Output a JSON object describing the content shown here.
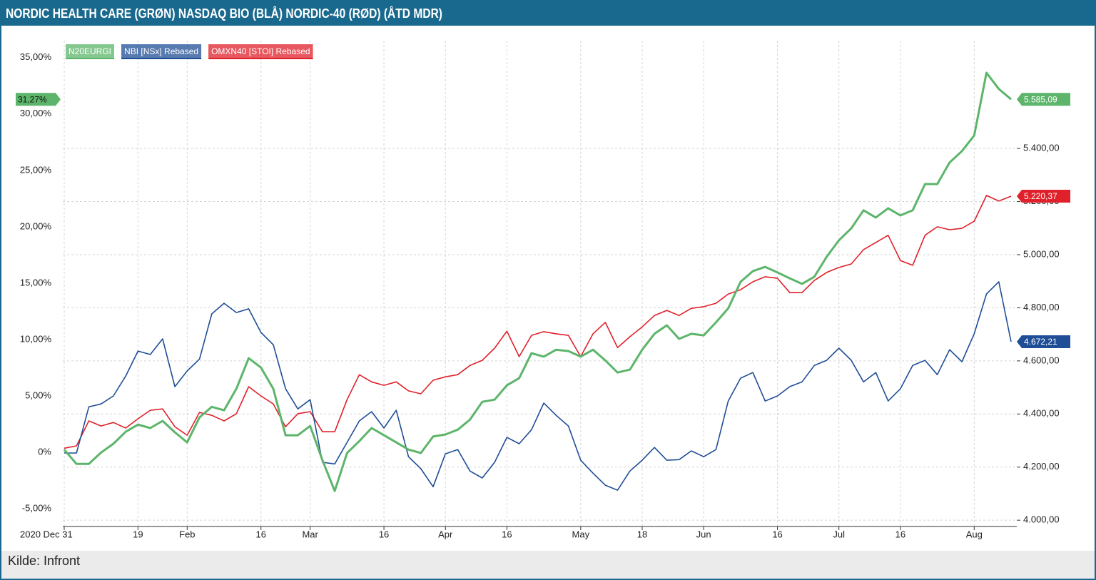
{
  "chart_data": {
    "type": "line",
    "title": "NORDIC HEALTH CARE (GRØN) NASDAQ BIO (BLÅ) NORDIC-40 (RØD) (ÅTD MDR)",
    "source": "Kilde: Infront",
    "categories": [
      "2020 Dec 31",
      null,
      null,
      null,
      null,
      null,
      "19",
      null,
      null,
      null,
      "Feb",
      null,
      null,
      null,
      null,
      null,
      "16",
      null,
      null,
      null,
      "Mar",
      null,
      null,
      null,
      null,
      null,
      "16",
      null,
      null,
      null,
      null,
      "Apr",
      null,
      null,
      null,
      null,
      "16",
      null,
      null,
      null,
      null,
      null,
      "May",
      null,
      null,
      null,
      null,
      "18",
      null,
      null,
      null,
      null,
      "Jun",
      null,
      null,
      null,
      null,
      null,
      "16",
      null,
      null,
      null,
      null,
      "Jul",
      null,
      null,
      null,
      null,
      "16",
      null,
      null,
      null,
      null,
      null,
      "Aug",
      null,
      null,
      null
    ],
    "ylim": [
      -6.5,
      36.5
    ],
    "yticks": [
      {
        "value": -5,
        "label": "-5,00%"
      },
      {
        "value": 0,
        "label": "0%"
      },
      {
        "value": 5,
        "label": "5,00%"
      },
      {
        "value": 10,
        "label": "10,00%"
      },
      {
        "value": 15,
        "label": "15,00%"
      },
      {
        "value": 20,
        "label": "20,00%"
      },
      {
        "value": 25,
        "label": "25,00%"
      },
      {
        "value": 30,
        "label": "30,00%"
      },
      {
        "value": 35,
        "label": "35,00%"
      }
    ],
    "y2lim": [
      3979,
      5806
    ],
    "y2ticks": [
      {
        "value": 4000,
        "label": "4.000,00"
      },
      {
        "value": 4200,
        "label": "4.200,00"
      },
      {
        "value": 4400,
        "label": "4.400,00"
      },
      {
        "value": 4600,
        "label": "4.600,00"
      },
      {
        "value": 4800,
        "label": "4.800,00"
      },
      {
        "value": 5000,
        "label": "5.000,00"
      },
      {
        "value": 5200,
        "label": "5.200,00"
      },
      {
        "value": 5400,
        "label": "5.400,00"
      }
    ],
    "grid": true,
    "legend": "top-left",
    "series": [
      {
        "name": "N20EURGI",
        "color": "#5cb56a",
        "axis": "y2",
        "end_label": "5.585,09",
        "end_label_left": "31,27%",
        "values": [
          4266,
          4212,
          4212,
          4255,
          4288,
          4333,
          4360,
          4347,
          4374,
          4331,
          4293,
          4387,
          4427,
          4414,
          4495,
          4610,
          4575,
          4495,
          4320,
          4320,
          4355,
          4226,
          4110,
          4253,
          4298,
          4347,
          4320,
          4293,
          4266,
          4253,
          4315,
          4323,
          4341,
          4379,
          4446,
          4454,
          4508,
          4535,
          4629,
          4616,
          4642,
          4637,
          4616,
          4642,
          4602,
          4556,
          4567,
          4642,
          4702,
          4734,
          4683,
          4702,
          4696,
          4745,
          4798,
          4898,
          4938,
          4954,
          4933,
          4911,
          4890,
          4917,
          4992,
          5054,
          5099,
          5167,
          5140,
          5175,
          5148,
          5167,
          5266,
          5266,
          5347,
          5390,
          5449,
          5685,
          5624,
          5585.09
        ]
      },
      {
        "name": "NBI [NSx] Rebased",
        "color": "#1f4e96",
        "axis": "y2",
        "end_label": "4.672,21",
        "values": [
          4253,
          4253,
          4427,
          4438,
          4468,
          4543,
          4637,
          4624,
          4683,
          4503,
          4562,
          4607,
          4777,
          4817,
          4782,
          4796,
          4707,
          4661,
          4495,
          4419,
          4454,
          4218,
          4212,
          4293,
          4374,
          4409,
          4347,
          4414,
          4239,
          4194,
          4126,
          4250,
          4266,
          4185,
          4159,
          4218,
          4312,
          4288,
          4341,
          4441,
          4395,
          4355,
          4226,
          4177,
          4132,
          4113,
          4185,
          4226,
          4274,
          4226,
          4228,
          4261,
          4239,
          4266,
          4449,
          4535,
          4556,
          4449,
          4468,
          4503,
          4521,
          4583,
          4602,
          4648,
          4602,
          4521,
          4556,
          4449,
          4495,
          4583,
          4602,
          4548,
          4642,
          4597,
          4702,
          4852,
          4898,
          4672.21
        ]
      },
      {
        "name": "OMXN40 [STOI] Rebased",
        "color": "#e0202a",
        "axis": "y2",
        "end_label": "5.220,37",
        "values": [
          4271,
          4280,
          4374,
          4355,
          4368,
          4347,
          4382,
          4414,
          4419,
          4352,
          4320,
          4406,
          4395,
          4374,
          4401,
          4503,
          4468,
          4438,
          4352,
          4401,
          4409,
          4333,
          4333,
          4454,
          4548,
          4521,
          4508,
          4521,
          4487,
          4476,
          4527,
          4540,
          4548,
          4583,
          4602,
          4648,
          4712,
          4616,
          4696,
          4710,
          4702,
          4696,
          4616,
          4702,
          4745,
          4650,
          4691,
          4728,
          4771,
          4790,
          4771,
          4798,
          4804,
          4817,
          4852,
          4868,
          4898,
          4917,
          4911,
          4857,
          4857,
          4903,
          4933,
          4952,
          4965,
          5019,
          5046,
          5073,
          4978,
          4960,
          5073,
          5105,
          5094,
          5099,
          5126,
          5223,
          5202,
          5220.37
        ]
      }
    ]
  }
}
